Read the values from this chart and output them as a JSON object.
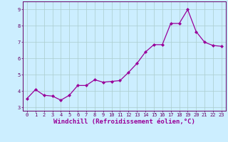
{
  "x": [
    0,
    1,
    2,
    3,
    4,
    5,
    6,
    7,
    8,
    9,
    10,
    11,
    12,
    13,
    14,
    15,
    16,
    17,
    18,
    19,
    20,
    21,
    22,
    23
  ],
  "y": [
    3.55,
    4.1,
    3.75,
    3.7,
    3.45,
    3.75,
    4.35,
    4.35,
    4.7,
    4.55,
    4.6,
    4.65,
    5.15,
    5.7,
    6.4,
    6.85,
    6.85,
    8.15,
    8.15,
    9.0,
    7.65,
    7.0,
    6.8,
    6.75
  ],
  "line_color": "#990099",
  "marker": "D",
  "markersize": 2.0,
  "linewidth": 0.9,
  "bg_color": "#cceeff",
  "grid_color": "#aacccc",
  "xlabel": "Windchill (Refroidissement éolien,°C)",
  "xlabel_color": "#990099",
  "ylim": [
    2.8,
    9.5
  ],
  "xlim": [
    -0.5,
    23.5
  ],
  "yticks": [
    3,
    4,
    5,
    6,
    7,
    8,
    9
  ],
  "xticks": [
    0,
    1,
    2,
    3,
    4,
    5,
    6,
    7,
    8,
    9,
    10,
    11,
    12,
    13,
    14,
    15,
    16,
    17,
    18,
    19,
    20,
    21,
    22,
    23
  ],
  "tick_fontsize": 5.0,
  "xlabel_fontsize": 6.5,
  "tick_color": "#660066"
}
